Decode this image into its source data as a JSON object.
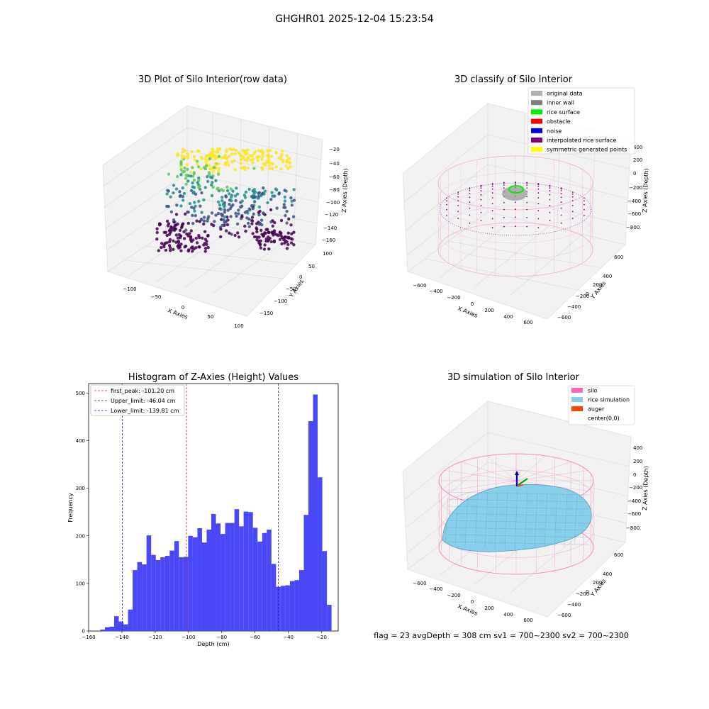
{
  "suptitle": "GHGHR01 2025-12-04 15:23:54",
  "panels": {
    "raw": {
      "title": "3D Plot of Silo Interior(row data)",
      "xlabel": "X Axies",
      "ylabel": "Y Axies",
      "zlabel": "Z Axies (Depth)",
      "xticks": [
        "−100",
        "−50",
        "0",
        "50",
        "100"
      ],
      "yticks": [
        "100",
        "50",
        "0",
        "−50",
        "−100",
        "−150"
      ],
      "zticks": [
        "−20",
        "−40",
        "−60",
        "−80",
        "−100",
        "−120",
        "−140",
        "−160"
      ],
      "colormap": [
        "#440154",
        "#3b528b",
        "#21918c",
        "#5ec962",
        "#fde725"
      ]
    },
    "classify": {
      "title": "3D classify of Silo Interior",
      "xlabel": "X Axies",
      "ylabel": "Y Axies",
      "zlabel": "Z Axies (Depth)",
      "xticks": [
        "−600",
        "−400",
        "−200",
        "0",
        "200",
        "400",
        "600"
      ],
      "yticks": [
        "600",
        "400",
        "200",
        "0",
        "−200",
        "−400",
        "−600"
      ],
      "zticks": [
        "400",
        "200",
        "0",
        "−200",
        "−400",
        "−600",
        "−800"
      ],
      "legend": [
        {
          "label": "original data",
          "color": "#b0b0b0"
        },
        {
          "label": "inner wall",
          "color": "#808080"
        },
        {
          "label": "rice surface",
          "color": "#00ee00"
        },
        {
          "label": "obstacle",
          "color": "#ff0000"
        },
        {
          "label": "noise",
          "color": "#0000ee"
        },
        {
          "label": "interpolated rice surface",
          "color": "#800080"
        },
        {
          "label": "symmetric generated points",
          "color": "#ffff00"
        }
      ],
      "wire_color": "#f7a6d2"
    },
    "simulation": {
      "title": "3D simulation of Silo Interior",
      "xlabel": "X Axies",
      "ylabel": "Y Axies",
      "zlabel": "Z Axies (Depth)",
      "xticks": [
        "−600",
        "−400",
        "−200",
        "0",
        "200",
        "400",
        "600"
      ],
      "yticks": [
        "600",
        "400",
        "200",
        "0",
        "−200",
        "−400",
        "−600"
      ],
      "zticks": [
        "400",
        "200",
        "0",
        "−200",
        "−400",
        "−600",
        "−800"
      ],
      "legend": [
        {
          "label": "silo",
          "color": "#ff69b4"
        },
        {
          "label": "rice simulation",
          "color": "#87ceeb"
        },
        {
          "label": "auger",
          "color": "#ff4500"
        },
        {
          "label": "center(0,0)",
          "color": ""
        }
      ],
      "footer": "flag = 23  avgDepth = 308 cm  sv1 = 700~2300  sv2 = 700~2300"
    }
  },
  "chart_data": {
    "type": "bar",
    "title": "Histogram of Z-Axies (Height) Values",
    "xlabel": "Depth (cm)",
    "ylabel": "Frequency",
    "xlim": [
      -160,
      -10
    ],
    "ylim": [
      0,
      520
    ],
    "xticks": [
      -160,
      -140,
      -120,
      -100,
      -80,
      -60,
      -40,
      -20
    ],
    "yticks": [
      0,
      100,
      200,
      300,
      400,
      500
    ],
    "bar_color": "#4848f7",
    "bin_start": -153,
    "bin_width": 2.78,
    "values": [
      3,
      8,
      9,
      31,
      20,
      14,
      45,
      128,
      145,
      140,
      201,
      160,
      149,
      155,
      158,
      169,
      189,
      155,
      156,
      200,
      197,
      216,
      186,
      213,
      246,
      226,
      204,
      227,
      227,
      256,
      220,
      251,
      250,
      217,
      188,
      206,
      213,
      141,
      93,
      95,
      96,
      105,
      107,
      128,
      244,
      441,
      497,
      323,
      168,
      55
    ],
    "vlines": [
      {
        "label": "first_peak: -101.20 cm",
        "x": -101.2,
        "color": "#d62728"
      },
      {
        "label": "Upper_limit: -46.04 cm",
        "x": -46.04,
        "color": "#1f1fa8"
      },
      {
        "label": "Lower_limit: -139.81 cm",
        "x": -139.81,
        "color": "#1f1fa8"
      }
    ]
  }
}
